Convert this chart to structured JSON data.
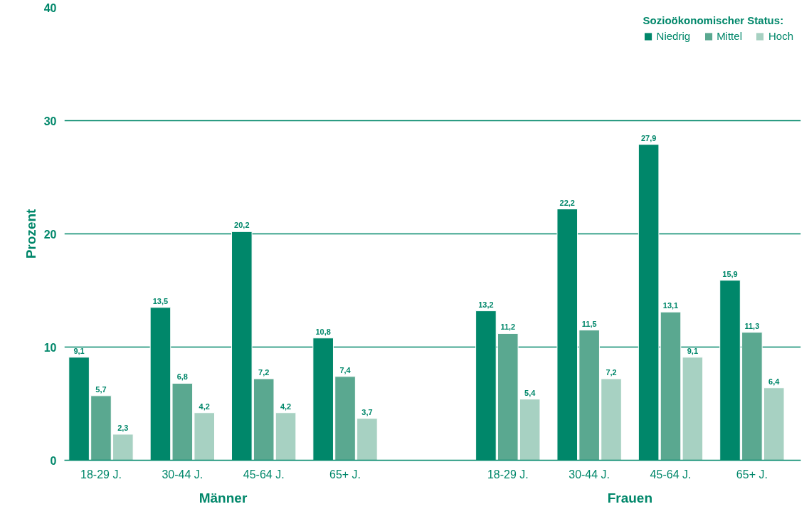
{
  "chart_data": {
    "type": "bar",
    "ylabel": "Prozent",
    "legend_title": "Sozioökonomischer Status:",
    "categories": [
      "18-29 J.",
      "30-44 J.",
      "45-64 J.",
      "65+ J.",
      null,
      "18-29 J.",
      "30-44 J.",
      "45-64 J.",
      "65+ J."
    ],
    "series": [
      {
        "name": "Niedrig",
        "color": "#00876a",
        "values": [
          9.1,
          13.5,
          20.2,
          10.8,
          null,
          13.2,
          22.2,
          27.9,
          15.9
        ],
        "value_labels": [
          "9,1",
          "13,5",
          "20,2",
          "10,8",
          null,
          "13,2",
          "22,2",
          "27,9",
          "15,9"
        ]
      },
      {
        "name": "Mittel",
        "color": "#5aa890",
        "values": [
          5.7,
          6.8,
          7.2,
          7.4,
          null,
          11.2,
          11.5,
          13.1,
          11.3
        ],
        "value_labels": [
          "5,7",
          "6,8",
          "7,2",
          "7,4",
          null,
          "11,2",
          "11,5",
          "13,1",
          "11,3"
        ]
      },
      {
        "name": "Hoch",
        "color": "#a7d1c2",
        "values": [
          2.3,
          4.2,
          4.2,
          3.7,
          null,
          5.4,
          7.2,
          9.1,
          6.4
        ],
        "value_labels": [
          "2,3",
          "4,2",
          "4,2",
          "3,7",
          null,
          "5,4",
          "7,2",
          "9,1",
          "6,4"
        ]
      }
    ],
    "annotations": [
      "Männer",
      "Frauen"
    ],
    "ylim": [
      0,
      40
    ],
    "yticks": [
      0,
      10,
      20,
      30,
      40
    ],
    "grid": "y",
    "legend": "top right"
  }
}
